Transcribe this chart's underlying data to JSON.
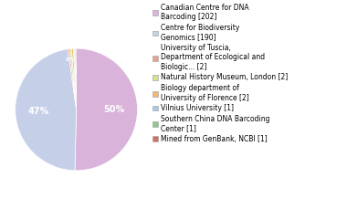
{
  "labels": [
    "Canadian Centre for DNA\nBarcoding [202]",
    "Centre for Biodiversity\nGenomics [190]",
    "University of Tuscia,\nDepartment of Ecological and\nBiologic... [2]",
    "Natural History Museum, London [2]",
    "Biology department of\nUniversity of Florence [2]",
    "Vilnius University [1]",
    "Southern China DNA Barcoding\nCenter [1]",
    "Mined from GenBank, NCBI [1]"
  ],
  "values": [
    202,
    190,
    2,
    2,
    2,
    1,
    1,
    1
  ],
  "colors": [
    "#d9b3d9",
    "#c5cfe8",
    "#e8a090",
    "#d4e090",
    "#f0b870",
    "#a8c8e8",
    "#90c890",
    "#d07060"
  ],
  "background_color": "#ffffff",
  "pct_fontsize": 7,
  "legend_fontsize": 5.5
}
